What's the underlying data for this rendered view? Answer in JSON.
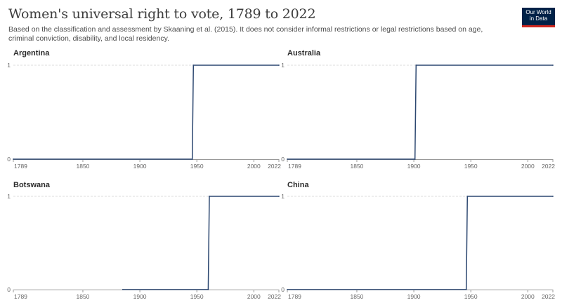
{
  "title": "Women's universal right to vote, 1789 to 2022",
  "subtitle": "Based on the classification and assessment by Skaaning et al. (2015). It does not consider informal restrictions or legal restrictions based on age, criminal conviction, disability, and local residency.",
  "logo": {
    "line1": "Our World",
    "line2": "in Data"
  },
  "colors": {
    "line": "#2c4770",
    "grid": "#dddddd",
    "axis": "#999999",
    "logo_bg": "#002147",
    "logo_accent": "#ce261e"
  },
  "chart_data": [
    {
      "type": "line",
      "title": "Argentina",
      "xlim": [
        1789,
        2022
      ],
      "ylim": [
        0,
        1
      ],
      "x_ticks": [
        1789,
        1850,
        1900,
        1950,
        2000,
        2022
      ],
      "y_ticks": [
        0,
        1
      ],
      "series": [
        {
          "x": [
            1789,
            1946,
            1947,
            2022
          ],
          "y": [
            0,
            0,
            1,
            1
          ]
        }
      ]
    },
    {
      "type": "line",
      "title": "Australia",
      "xlim": [
        1789,
        2022
      ],
      "ylim": [
        0,
        1
      ],
      "x_ticks": [
        1789,
        1850,
        1900,
        1950,
        2000,
        2022
      ],
      "y_ticks": [
        0,
        1
      ],
      "series": [
        {
          "x": [
            1789,
            1901,
            1902,
            2022
          ],
          "y": [
            0,
            0,
            1,
            1
          ]
        }
      ]
    },
    {
      "type": "line",
      "title": "Botswana",
      "xlim": [
        1789,
        2022
      ],
      "ylim": [
        0,
        1
      ],
      "x_ticks": [
        1789,
        1850,
        1900,
        1950,
        2000,
        2022
      ],
      "y_ticks": [
        0,
        1
      ],
      "series": [
        {
          "x": [
            1885,
            1960,
            1961,
            2022
          ],
          "y": [
            0,
            0,
            1,
            1
          ]
        }
      ]
    },
    {
      "type": "line",
      "title": "China",
      "xlim": [
        1789,
        2022
      ],
      "ylim": [
        0,
        1
      ],
      "x_ticks": [
        1789,
        1850,
        1900,
        1950,
        2000,
        2022
      ],
      "y_ticks": [
        0,
        1
      ],
      "series": [
        {
          "x": [
            1789,
            1946,
            1947,
            2022
          ],
          "y": [
            0,
            0,
            1,
            1
          ]
        }
      ]
    }
  ]
}
